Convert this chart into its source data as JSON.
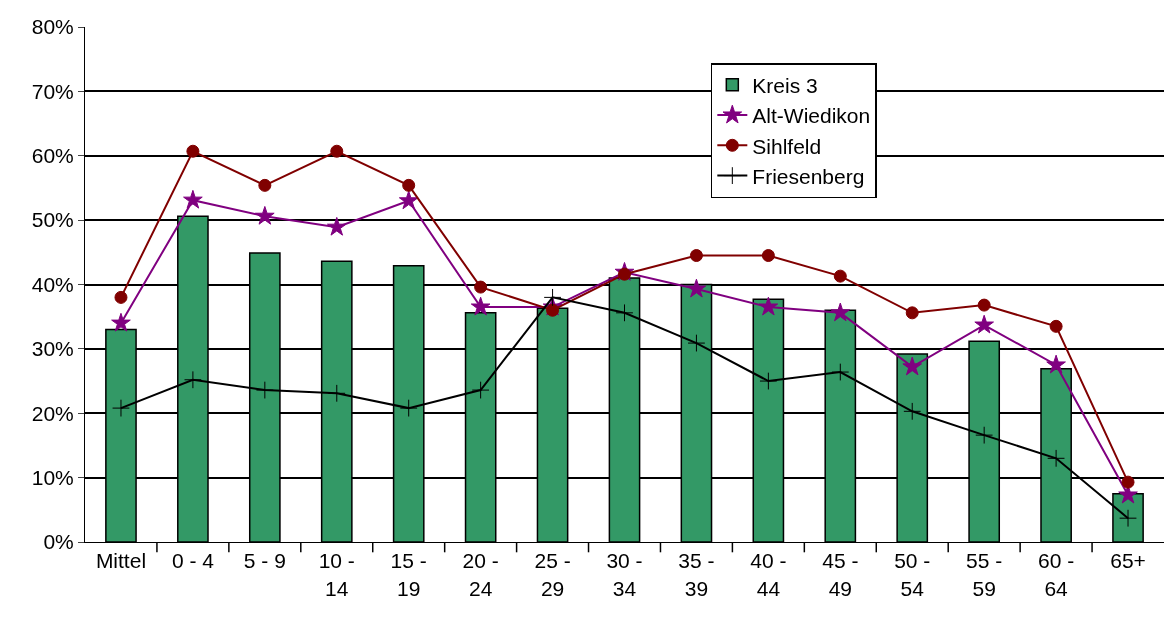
{
  "chart_data": {
    "type": "bar",
    "categories": [
      "Mittel",
      "0 - 4",
      "5 - 9",
      "10 - 14",
      "15 - 19",
      "20 - 24",
      "25 - 29",
      "30 - 34",
      "35 - 39",
      "40 - 44",
      "45 - 49",
      "50 - 54",
      "55 - 59",
      "60 - 64",
      "65+"
    ],
    "series": [
      {
        "name": "Kreis 3",
        "color": "#339966",
        "values": [
          33,
          50.6,
          44.9,
          43.6,
          42.9,
          35.6,
          36.3,
          41,
          40,
          37.7,
          36,
          29.2,
          31.2,
          26.9,
          7.5
        ]
      },
      {
        "name": "Alt-Wiedikon",
        "type": "line",
        "color": "#800080",
        "marker": "star",
        "values": [
          34,
          53.1,
          50.6,
          48.9,
          53,
          36.5,
          36.5,
          41.9,
          39.3,
          36.5,
          35.6,
          27.2,
          33.7,
          27.5,
          7.3
        ]
      },
      {
        "name": "Sihlfeld",
        "type": "line",
        "color": "#800000",
        "marker": "circle",
        "values": [
          38,
          60.7,
          55.4,
          60.7,
          55.4,
          39.6,
          36,
          41.6,
          44.5,
          44.5,
          41.3,
          35.6,
          36.8,
          33.5,
          9.3
        ]
      },
      {
        "name": "Friesenberg",
        "type": "line",
        "color": "#000000",
        "marker": "cross",
        "values": [
          20.8,
          25.2,
          23.6,
          23.1,
          20.8,
          23.6,
          38,
          35.6,
          30.9,
          25,
          26.4,
          20.3,
          16.6,
          13,
          3.7
        ]
      }
    ],
    "ylim": [
      0,
      80
    ],
    "yticks": [
      {
        "value": 0,
        "label": "0%"
      },
      {
        "value": 10,
        "label": "10%"
      },
      {
        "value": 20,
        "label": "20%"
      },
      {
        "value": 30,
        "label": "30%"
      },
      {
        "value": 40,
        "label": "40%"
      },
      {
        "value": 50,
        "label": "50%"
      },
      {
        "value": 60,
        "label": "60%"
      },
      {
        "value": 70,
        "label": "70%"
      },
      {
        "value": 80,
        "label": "80%"
      }
    ],
    "grid": "y",
    "legend": "top right",
    "line_style": "solid"
  }
}
